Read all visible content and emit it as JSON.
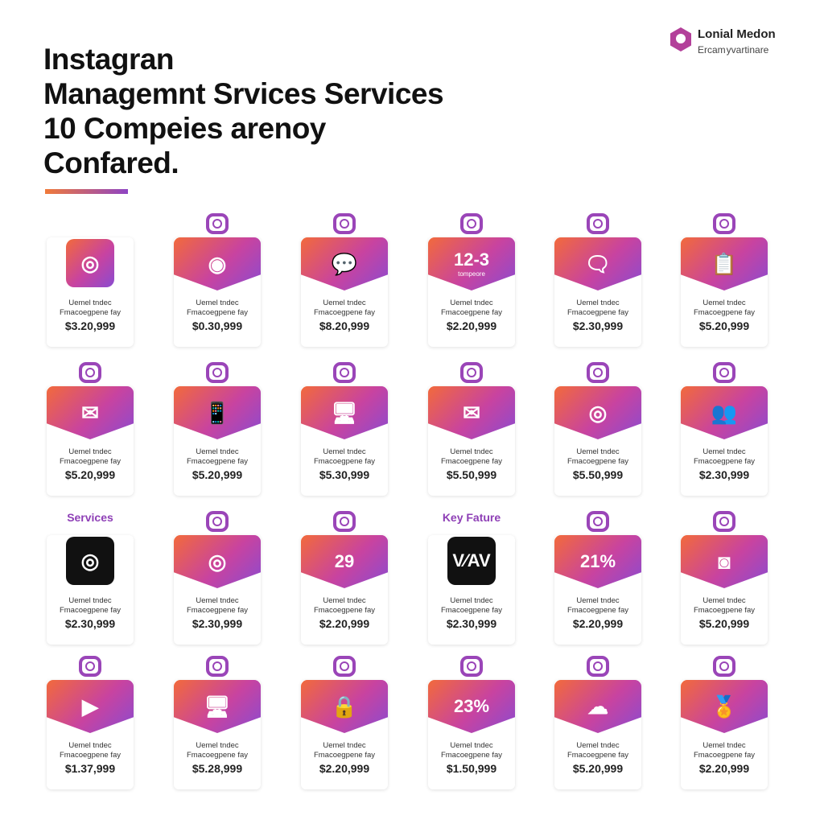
{
  "header": {
    "title_lines": [
      "Instagran",
      "Managemnt Srvices Services",
      "10 Compeies arenoy",
      "Confared."
    ]
  },
  "brand": {
    "name": "Lonial Medon",
    "tagline": "Ercam yvartinare"
  },
  "card_text": {
    "line1": "Uemel tndec",
    "line2": "Fmacoegpene fay"
  },
  "colors": {
    "gradient_start": "#f26a3b",
    "gradient_mid": "#c843a0",
    "gradient_end": "#8a4bd0",
    "label": "#8e3fb6"
  },
  "cards": [
    {
      "icon": "instagram-icon",
      "glyph": "◎",
      "style": "sq",
      "price": "$3.20,999"
    },
    {
      "icon": "webcam-icon",
      "glyph": "◉",
      "price": "$0.30,999"
    },
    {
      "icon": "chat-icon",
      "glyph": "💬",
      "price": "$8.20,999"
    },
    {
      "icon": "",
      "text": "12-3",
      "sub": "tompeore",
      "price": "$2.20,999"
    },
    {
      "icon": "chat-bubbles-icon",
      "glyph": "🗨",
      "price": "$2.30,999"
    },
    {
      "icon": "clipboard-user-icon",
      "glyph": "📋",
      "price": "$5.20,999"
    },
    {
      "icon": "mail-icon",
      "glyph": "✉",
      "price": "$5.20,999"
    },
    {
      "icon": "phone-icon",
      "glyph": "📱",
      "price": "$5.20,999"
    },
    {
      "icon": "monitor-user-icon",
      "glyph": "🖥",
      "price": "$5.30,999"
    },
    {
      "icon": "envelope-icon",
      "glyph": "✉",
      "price": "$5.50,999"
    },
    {
      "icon": "target-icon",
      "glyph": "◎",
      "price": "$5.50,999"
    },
    {
      "icon": "users-icon",
      "glyph": "👥",
      "price": "$2.30,999"
    },
    {
      "icon": "instagram-icon",
      "glyph": "◎",
      "style": "sq dark",
      "label": "Services",
      "price": "$2.30,999"
    },
    {
      "icon": "target-search-icon",
      "glyph": "◎",
      "price": "$2.30,999"
    },
    {
      "icon": "",
      "text": "29",
      "price": "$2.20,999"
    },
    {
      "icon": "",
      "text": "V⁄AV",
      "style": "sq dark",
      "label": "Key Fature",
      "price": "$2.30,999"
    },
    {
      "icon": "",
      "text": "21%",
      "price": "$2.20,999"
    },
    {
      "icon": "profile-settings-icon",
      "glyph": "◙",
      "price": "$5.20,999"
    },
    {
      "icon": "video-icon",
      "glyph": "▶",
      "price": "$1.37,999"
    },
    {
      "icon": "monitor-target-icon",
      "glyph": "🖥",
      "price": "$5.28,999"
    },
    {
      "icon": "lock-mail-icon",
      "glyph": "🔒",
      "price": "$2.20,999"
    },
    {
      "icon": "",
      "text": "23%",
      "price": "$1.50,999"
    },
    {
      "icon": "cloud-camera-icon",
      "glyph": "☁",
      "price": "$5.20,999"
    },
    {
      "icon": "award-icon",
      "glyph": "🏅",
      "price": "$2.20,999"
    }
  ]
}
